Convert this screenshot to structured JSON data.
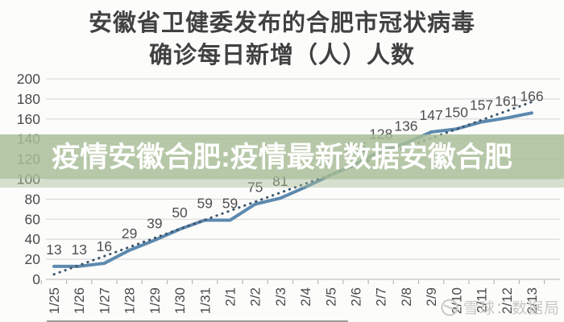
{
  "page": {
    "background": "#fcfcfb"
  },
  "title": {
    "line1": "安徽省卫健委发布的合肥市冠状病毒",
    "line2": "确诊每日新增（人）人数"
  },
  "overlay_banner": {
    "text": "疫情安徽合肥:疫情最新数据安徽合肥",
    "background": "#a9bd97",
    "text_color": "#ffffff"
  },
  "watermark": {
    "icon": "snowball-logo-icon",
    "text": "雪球：数据局",
    "color": "#c7c7c5"
  },
  "chart_data": {
    "type": "line",
    "title": "安徽省卫健委发布的合肥市冠状病毒确诊每日新增（人）人数",
    "categories": [
      "1/25",
      "1/26",
      "1/27",
      "1/28",
      "1/29",
      "1/30",
      "1/31",
      "2/1",
      "2/2",
      "2/3",
      "2/4",
      "2/5",
      "2/6",
      "2/7",
      "2/8",
      "2/9",
      "2/10",
      "2/11",
      "2/12",
      "2/13"
    ],
    "series": [
      {
        "name": "每日新增确诊人数",
        "style": "solid",
        "color": "#5d89ae",
        "values": [
          13,
          13,
          16,
          29,
          39,
          50,
          59,
          59,
          75,
          81,
          92,
          104,
          115,
          128,
          136,
          147,
          150,
          157,
          161,
          166
        ]
      },
      {
        "name": "趋势线",
        "style": "dotted",
        "color": "#3d566b",
        "trend_endpoints": [
          5,
          177
        ]
      }
    ],
    "data_labels": [
      "13",
      "13",
      "16",
      "29",
      "39",
      "50",
      "59",
      "59",
      "75",
      "81",
      "",
      "",
      "115",
      "128",
      "136",
      "147",
      "150",
      "157",
      "161",
      "166"
    ],
    "values_estimated_indices": [
      10,
      11
    ],
    "ylabel": "",
    "xlabel": "",
    "ylim": [
      0,
      200
    ],
    "ytick_step": 20,
    "grid": true,
    "legend": "none",
    "axis_label_color": "#4a4a4a",
    "grid_color": "#d9d9d9",
    "label_color": "#4f4f4f"
  }
}
